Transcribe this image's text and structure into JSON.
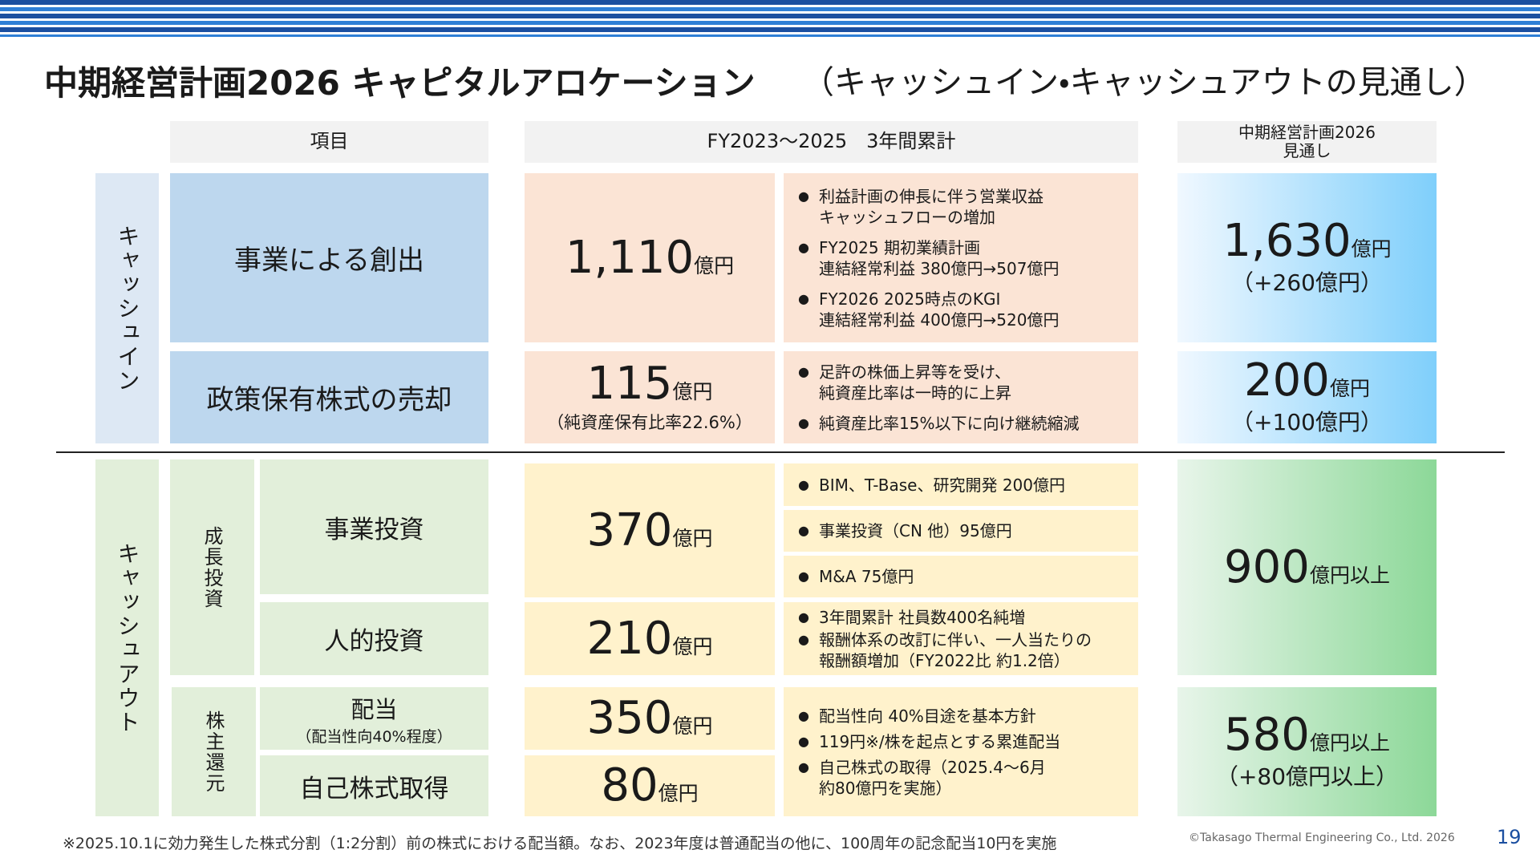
{
  "header": {
    "title": "中期経営計画2026 キャピタルアロケーション",
    "subtitle": "（キャッシュイン・キャッシュアウトの見通し）"
  },
  "table": {
    "columns": [
      "項目",
      "FY2023～2025　3年間累計",
      "中期経営計画2026\n見通し"
    ],
    "cash_in": {
      "label": "キャッシュイン",
      "rows": [
        {
          "item": "事業による創出",
          "amount": "1,110",
          "unit": "億円",
          "details": [
            "利益計画の伸長に伴う営業収益\nキャッシュフローの増加",
            "FY2025 期初業績計画\n連結経常利益 380億円→507億円",
            "FY2026 2025時点のKGI\n連結経常利益 400億円→520億円"
          ],
          "forecast": {
            "amount": "1,630",
            "unit": "億円",
            "note": "（+260億円）"
          }
        },
        {
          "item": "政策保有株式の売却",
          "amount": "115",
          "unit": "億円",
          "note": "（純資産保有比率22.6%）",
          "details": [
            "足許の株価上昇等を受け、\n純資産比率は一時的に上昇",
            "純資産比率15%以下に向け継続縮減"
          ],
          "forecast": {
            "amount": "200",
            "unit": "億円",
            "note": "（+100億円）"
          }
        }
      ]
    },
    "cash_out": {
      "label": "キャッシュアウト",
      "groups": [
        {
          "label": "成長投資",
          "rows": [
            {
              "item": "事業投資",
              "amount": "370",
              "unit": "億円",
              "details": [
                "BIM、T-Base、研究開発 200億円",
                "事業投資（CN 他）95億円",
                "M&A 75億円"
              ]
            },
            {
              "item": "人的投資",
              "amount": "210",
              "unit": "億円",
              "details": [
                "3年間累計 社員数400名純増",
                "報酬体系の改訂に伴い、一人当たりの\n報酬額増加（FY2022比 約1.2倍）"
              ]
            }
          ],
          "forecast": {
            "amount": "900",
            "unit": "億円以上"
          }
        },
        {
          "label": "株主還元",
          "rows": [
            {
              "item": "配当",
              "item_note": "（配当性向40%程度）",
              "amount": "350",
              "unit": "億円"
            },
            {
              "item": "自己株式取得",
              "amount": "80",
              "unit": "億円"
            }
          ],
          "details": [
            "配当性向 40%目途を基本方針",
            "119円※/株を起点とする累進配当",
            "自己株式の取得（2025.4～6月\n約80億円を実施）"
          ],
          "forecast": {
            "amount": "580",
            "unit": "億円以上",
            "note": "（+80億円以上）"
          }
        }
      ]
    }
  },
  "footer": {
    "note": "※2025.10.1に効力発生した株式分割（1:2分割）前の株式における配当額。なお、2023年度は普通配当の他に、100周年の記念配当10円を実施",
    "copyright": "©Takasago Thermal Engineering Co., Ltd. 2026",
    "page": "19"
  }
}
